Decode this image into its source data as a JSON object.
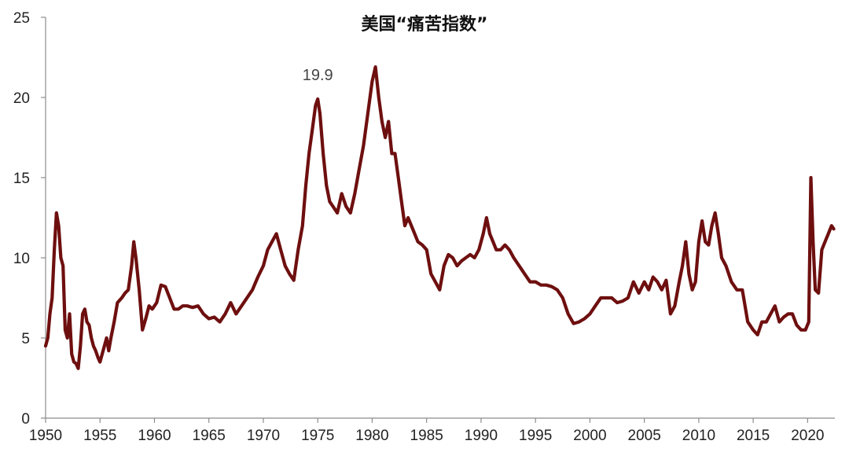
{
  "chart_data": {
    "type": "line",
    "title": "美国“痛苦指数”",
    "xlabel": "",
    "ylabel": "",
    "xlim": [
      1950,
      2022.5
    ],
    "ylim": [
      0,
      25
    ],
    "x_ticks": [
      "1950",
      "1955",
      "1960",
      "1965",
      "1970",
      "1975",
      "1980",
      "1985",
      "1990",
      "1995",
      "2000",
      "2005",
      "2010",
      "2015",
      "2020"
    ],
    "y_ticks": [
      "0",
      "5",
      "10",
      "15",
      "20",
      "25"
    ],
    "grid": false,
    "line_color": "#6e0f0f",
    "annotations": [
      {
        "text": "19.9",
        "x": 1975.0,
        "y": 19.9
      }
    ],
    "series": [
      {
        "x": [
          1950.0,
          1950.2,
          1950.4,
          1950.6,
          1950.8,
          1951.0,
          1951.2,
          1951.4,
          1951.6,
          1951.8,
          1952.0,
          1952.2,
          1952.4,
          1952.6,
          1952.8,
          1953.0,
          1953.2,
          1953.4,
          1953.6,
          1953.8,
          1954.0,
          1954.2,
          1954.4,
          1954.6,
          1954.8,
          1955.0,
          1955.2,
          1955.4,
          1955.6,
          1955.8,
          1956.0,
          1956.3,
          1956.6,
          1957.0,
          1957.3,
          1957.6,
          1957.9,
          1958.1,
          1958.3,
          1958.6,
          1958.9,
          1959.2,
          1959.5,
          1959.8,
          1960.2,
          1960.6,
          1961.0,
          1961.4,
          1961.8,
          1962.2,
          1962.6,
          1963.0,
          1963.5,
          1964.0,
          1964.5,
          1965.0,
          1965.5,
          1966.0,
          1966.5,
          1967.0,
          1967.5,
          1968.0,
          1968.5,
          1969.0,
          1969.5,
          1970.0,
          1970.4,
          1970.8,
          1971.2,
          1971.6,
          1972.0,
          1972.4,
          1972.8,
          1973.2,
          1973.6,
          1973.9,
          1974.2,
          1974.5,
          1974.8,
          1975.0,
          1975.2,
          1975.5,
          1975.8,
          1976.1,
          1976.4,
          1976.8,
          1977.2,
          1977.6,
          1978.0,
          1978.4,
          1978.8,
          1979.2,
          1979.6,
          1980.0,
          1980.3,
          1980.6,
          1980.9,
          1981.2,
          1981.5,
          1981.8,
          1982.1,
          1982.4,
          1982.7,
          1983.0,
          1983.3,
          1983.6,
          1983.9,
          1984.2,
          1984.6,
          1985.0,
          1985.4,
          1985.8,
          1986.2,
          1986.6,
          1987.0,
          1987.4,
          1987.8,
          1988.2,
          1988.6,
          1989.0,
          1989.4,
          1989.8,
          1990.2,
          1990.5,
          1990.8,
          1991.1,
          1991.4,
          1991.8,
          1992.2,
          1992.6,
          1993.0,
          1993.5,
          1994.0,
          1994.5,
          1995.0,
          1995.5,
          1996.0,
          1996.5,
          1997.0,
          1997.5,
          1998.0,
          1998.5,
          1999.0,
          1999.5,
          2000.0,
          2000.5,
          2001.0,
          2001.5,
          2002.0,
          2002.5,
          2003.0,
          2003.5,
          2004.0,
          2004.5,
          2005.0,
          2005.4,
          2005.8,
          2006.2,
          2006.6,
          2007.0,
          2007.4,
          2007.8,
          2008.2,
          2008.5,
          2008.8,
          2009.1,
          2009.4,
          2009.7,
          2010.0,
          2010.3,
          2010.6,
          2010.9,
          2011.2,
          2011.5,
          2011.8,
          2012.1,
          2012.5,
          2013.0,
          2013.5,
          2014.0,
          2014.5,
          2015.0,
          2015.4,
          2015.8,
          2016.2,
          2016.6,
          2017.0,
          2017.4,
          2017.8,
          2018.2,
          2018.6,
          2019.0,
          2019.4,
          2019.8,
          2020.1,
          2020.3,
          2020.5,
          2020.7,
          2021.0,
          2021.3,
          2021.6,
          2021.9,
          2022.2,
          2022.4
        ],
        "y": [
          4.5,
          5.0,
          6.5,
          7.5,
          10.5,
          12.8,
          12.0,
          10.0,
          9.5,
          5.5,
          5.0,
          6.5,
          4.0,
          3.5,
          3.4,
          3.1,
          4.5,
          6.5,
          6.8,
          6.0,
          5.8,
          5.0,
          4.5,
          4.2,
          3.8,
          3.5,
          4.0,
          4.5,
          5.0,
          4.2,
          5.0,
          6.0,
          7.2,
          7.5,
          7.8,
          8.0,
          9.5,
          11.0,
          10.0,
          8.0,
          5.5,
          6.2,
          7.0,
          6.8,
          7.2,
          8.3,
          8.2,
          7.5,
          6.8,
          6.8,
          7.0,
          7.0,
          6.9,
          7.0,
          6.5,
          6.2,
          6.3,
          6.0,
          6.5,
          7.2,
          6.5,
          7.0,
          7.5,
          8.0,
          8.8,
          9.5,
          10.5,
          11.0,
          11.5,
          10.5,
          9.5,
          9.0,
          8.6,
          10.5,
          12.0,
          14.5,
          16.5,
          18.0,
          19.5,
          19.9,
          19.0,
          16.5,
          14.5,
          13.5,
          13.2,
          12.8,
          14.0,
          13.2,
          12.8,
          14.0,
          15.5,
          17.0,
          19.0,
          21.0,
          21.9,
          20.0,
          18.5,
          17.5,
          18.5,
          16.5,
          16.5,
          15.0,
          13.5,
          12.0,
          12.5,
          12.0,
          11.5,
          11.0,
          10.8,
          10.5,
          9.0,
          8.5,
          8.0,
          9.5,
          10.2,
          10.0,
          9.5,
          9.8,
          10.0,
          10.2,
          10.0,
          10.5,
          11.5,
          12.5,
          11.5,
          11.0,
          10.5,
          10.5,
          10.8,
          10.5,
          10.0,
          9.5,
          9.0,
          8.5,
          8.5,
          8.3,
          8.3,
          8.2,
          8.0,
          7.5,
          6.5,
          5.9,
          6.0,
          6.2,
          6.5,
          7.0,
          7.5,
          7.5,
          7.5,
          7.2,
          7.3,
          7.5,
          8.5,
          7.8,
          8.5,
          8.0,
          8.8,
          8.5,
          8.0,
          8.6,
          6.5,
          7.0,
          8.5,
          9.5,
          11.0,
          9.0,
          8.0,
          8.5,
          11.0,
          12.3,
          11.0,
          10.8,
          12.0,
          12.8,
          11.5,
          10.0,
          9.5,
          8.5,
          8.0,
          8.0,
          6.0,
          5.5,
          5.2,
          6.0,
          6.0,
          6.5,
          7.0,
          6.0,
          6.3,
          6.5,
          6.5,
          5.8,
          5.5,
          5.5,
          6.0,
          15.0,
          11.0,
          8.0,
          7.8,
          10.5,
          11.0,
          11.5,
          12.0,
          11.8
        ]
      }
    ]
  }
}
